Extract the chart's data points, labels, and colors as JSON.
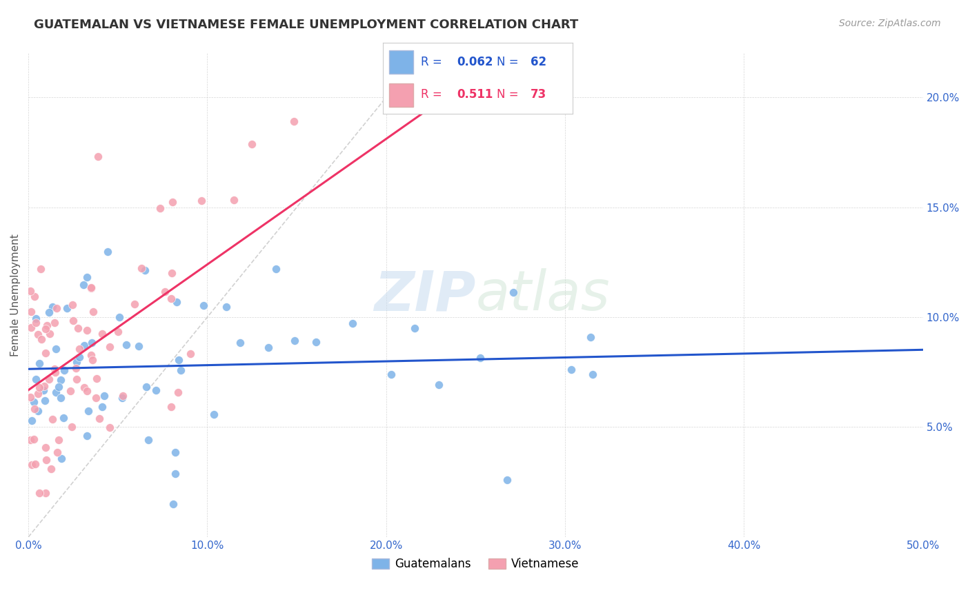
{
  "title": "GUATEMALAN VS VIETNAMESE FEMALE UNEMPLOYMENT CORRELATION CHART",
  "source": "Source: ZipAtlas.com",
  "ylabel": "Female Unemployment",
  "xlim": [
    0.0,
    0.5
  ],
  "ylim": [
    0.0,
    0.22
  ],
  "blue_color": "#7EB3E8",
  "pink_color": "#F4A0B0",
  "blue_line_color": "#2255CC",
  "pink_line_color": "#EE3366",
  "diagonal_color": "#CCCCCC",
  "watermark_zip": "ZIP",
  "watermark_atlas": "atlas",
  "legend_r_blue": "0.062",
  "legend_n_blue": "62",
  "legend_r_pink": "0.511",
  "legend_n_pink": "73",
  "blue_label": "Guatemalans",
  "pink_label": "Vietnamese"
}
